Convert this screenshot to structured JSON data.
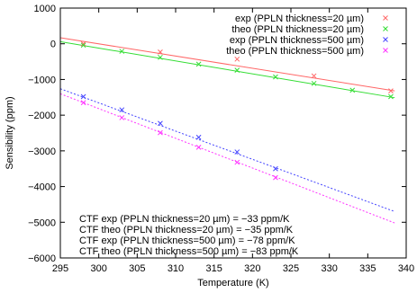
{
  "chart_data": {
    "type": "scatter",
    "xlabel": "Temperature (K)",
    "ylabel": "Sensibility (ppm)",
    "xlim": [
      295,
      340
    ],
    "ylim": [
      -6000,
      1000
    ],
    "xticks": [
      295,
      300,
      305,
      310,
      315,
      320,
      325,
      330,
      335,
      340
    ],
    "yticks": [
      -6000,
      -5000,
      -4000,
      -3000,
      -2000,
      -1000,
      0,
      1000
    ],
    "grid": false,
    "legend_position": "top-right",
    "series": [
      {
        "name": "exp (PPLN thickness=20 µm)",
        "color": "#ff6666",
        "marker": "x",
        "points": [
          [
            298,
            0
          ],
          [
            308,
            -230
          ],
          [
            318,
            -430
          ],
          [
            328,
            -900
          ],
          [
            338,
            -1320
          ]
        ],
        "fit": {
          "x": [
            295,
            338.5
          ],
          "y": [
            170,
            -1320
          ]
        }
      },
      {
        "name": "theo (PPLN thickness=20 µm)",
        "color": "#33dd33",
        "marker": "x",
        "points": [
          [
            298,
            -40
          ],
          [
            303,
            -210
          ],
          [
            308,
            -380
          ],
          [
            313,
            -570
          ],
          [
            318,
            -740
          ],
          [
            323,
            -930
          ],
          [
            328,
            -1110
          ],
          [
            333,
            -1300
          ],
          [
            338,
            -1480
          ]
        ],
        "fit": {
          "x": [
            295,
            338.5
          ],
          "y": [
            60,
            -1510
          ]
        }
      },
      {
        "name": "exp (PPLN thickness=500 µm)",
        "color": "#4444ff",
        "marker": "x",
        "points": [
          [
            298,
            -1480
          ],
          [
            303,
            -1850
          ],
          [
            308,
            -2230
          ],
          [
            313,
            -2620
          ],
          [
            318,
            -3030
          ],
          [
            323,
            -3500
          ]
        ],
        "fit": {
          "x": [
            295,
            338.5
          ],
          "y": [
            -1260,
            -4700
          ]
        }
      },
      {
        "name": "theo (PPLN thickness=500 µm)",
        "color": "#ff33ff",
        "marker": "x",
        "points": [
          [
            298,
            -1650
          ],
          [
            303,
            -2070
          ],
          [
            308,
            -2490
          ],
          [
            313,
            -2900
          ],
          [
            318,
            -3320
          ],
          [
            323,
            -3750
          ]
        ],
        "fit": {
          "x": [
            295,
            338.5
          ],
          "y": [
            -1400,
            -5020
          ]
        }
      }
    ],
    "annotations": [
      "CTF exp (PPLN thickness=20 µm) = −33 ppm/K",
      "CTF theo (PPLN thickness=20 µm) = −35 ppm/K",
      "CTF exp (PPLN thickness=500 µm) = −78 ppm/K",
      "CTF theo (PPLN thickness=500 µm) = −83 ppm/K"
    ]
  }
}
